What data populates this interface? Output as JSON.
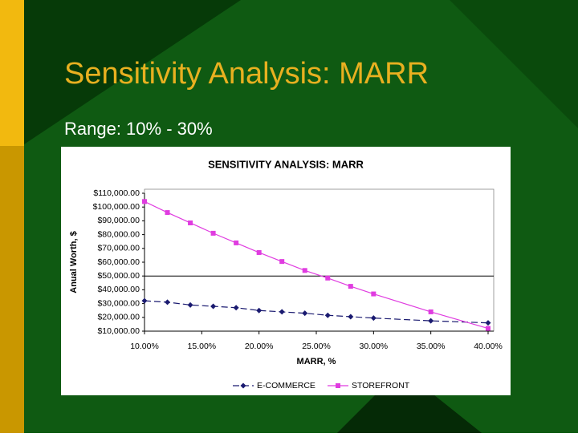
{
  "slide": {
    "title": "Sensitivity Analysis: MARR",
    "subtitle": "Range: 10% - 30%"
  },
  "chart_data": {
    "type": "line",
    "title": "SENSITIVITY ANALYSIS: MARR",
    "xlabel": "MARR, %",
    "ylabel": "Anual Worth, $",
    "x": [
      10,
      12,
      14,
      16,
      18,
      20,
      22,
      24,
      26,
      28,
      30,
      35,
      40
    ],
    "series": [
      {
        "name": "E-COMMERCE",
        "color": "#1a1a70",
        "marker": "diamond",
        "dashed": true,
        "values": [
          32000,
          31000,
          29000,
          28000,
          27000,
          25000,
          24000,
          23000,
          21500,
          20500,
          19500,
          17500,
          16000
        ]
      },
      {
        "name": "STOREFRONT",
        "color": "#e03ce0",
        "marker": "square",
        "dashed": false,
        "values": [
          104000,
          96000,
          88500,
          81000,
          74000,
          67000,
          60500,
          54000,
          48500,
          42500,
          37000,
          24000,
          12000
        ]
      }
    ],
    "reference_line": 50000,
    "xlim": [
      10,
      40
    ],
    "xticks": [
      {
        "value": 10,
        "label": "10.00%"
      },
      {
        "value": 15,
        "label": "15.00%"
      },
      {
        "value": 20,
        "label": "20.00%"
      },
      {
        "value": 25,
        "label": "25.00%"
      },
      {
        "value": 30,
        "label": "30.00%"
      },
      {
        "value": 35,
        "label": "35.00%"
      },
      {
        "value": 40,
        "label": "40.00%"
      }
    ],
    "ylim": [
      10000,
      110000
    ],
    "yticks": [
      {
        "value": 10000,
        "label": "$10,000.00"
      },
      {
        "value": 20000,
        "label": "$20,000.00"
      },
      {
        "value": 30000,
        "label": "$30,000.00"
      },
      {
        "value": 40000,
        "label": "$40,000.00"
      },
      {
        "value": 50000,
        "label": "$50,000.00"
      },
      {
        "value": 60000,
        "label": "$60,000.00"
      },
      {
        "value": 70000,
        "label": "$70,000.00"
      },
      {
        "value": 80000,
        "label": "$80,000.00"
      },
      {
        "value": 90000,
        "label": "$90,000.00"
      },
      {
        "value": 100000,
        "label": "$100,000.00"
      },
      {
        "value": 110000,
        "label": "$110,000.00"
      }
    ],
    "legend": "bottom"
  }
}
